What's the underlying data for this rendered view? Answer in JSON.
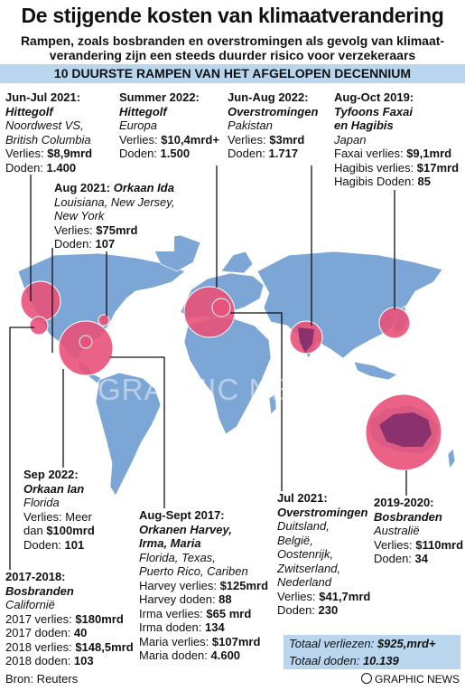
{
  "title": "De stijgende kosten van klimaatverandering",
  "subtitle": "Rampen, zoals bosbranden en overstromingen als gevolg van klimaat-verandering zijn een steeds duurder risico voor verzekeraars",
  "banner": "10 DUURSTE RAMPEN VAN HET AFGELOPEN DECENNIUM",
  "colors": {
    "ocean": "#ffffff",
    "land": "#7ba6d6",
    "highlight": "#e8527a",
    "banner": "#b9d6ee"
  },
  "watermark": "GRAPHIC NEWS",
  "events": {
    "heat2021": {
      "date": "Jun-Jul 2021:",
      "event": "Hittegolf",
      "location1": "Noordwest VS,",
      "location2": "British Columbia",
      "loss_label": "Verlies: ",
      "loss": "$8,9mrd",
      "deaths_label": "Doden: ",
      "deaths": "1.400"
    },
    "heat2022": {
      "date": "Summer 2022:",
      "event": "Hittegolf",
      "location": "Europa",
      "loss_label": "Verlies: ",
      "loss": "$10,4mrd+",
      "deaths_label": "Doden: ",
      "deaths": "1.500"
    },
    "pakistan": {
      "date": "Jun-Aug 2022:",
      "event": "Overstromingen",
      "location": "Pakistan",
      "loss_label": "Verlies: ",
      "loss": "$3mrd",
      "deaths_label": "Doden: ",
      "deaths": "1.717"
    },
    "japan": {
      "date": "Aug-Oct 2019:",
      "event1": "Tyfoons Faxai",
      "event2": "en Hagibis",
      "location": "Japan",
      "loss1_label": "Faxai verlies: ",
      "loss1": "$9,1mrd",
      "loss2_label": "Hagibis verlies: ",
      "loss2": "$17mrd",
      "deaths_label": "Hagibis Doden: ",
      "deaths": "85"
    },
    "ida": {
      "date": "Aug 2021: ",
      "event": "Orkaan Ida",
      "location1": "Louisiana, New Jersey,",
      "location2": "New York",
      "loss_label": "Verlies: ",
      "loss": "$75mrd",
      "deaths_label": "Doden: ",
      "deaths": "107"
    },
    "ian": {
      "date": "Sep 2022:",
      "event": "Orkaan Ian",
      "location": "Florida",
      "loss_label1": "Verlies: Meer",
      "loss_label2": "dan ",
      "loss": "$100mrd",
      "deaths_label": "Doden: ",
      "deaths": "101"
    },
    "harvey": {
      "date": "Aug-Sept 2017:",
      "event1": "Orkanen Harvey,",
      "event2": "Irma, Maria",
      "location1": "Florida, Texas,",
      "location2": "Puerto Rico, Cariben",
      "harvey_loss_label": "Harvey verlies: ",
      "harvey_loss": "$125mrd",
      "harvey_deaths_label": "Harvey doden: ",
      "harvey_deaths": "88",
      "irma_loss_label": "Irma verlies: ",
      "irma_loss": "$65 mrd",
      "irma_deaths_label": "Irma doden: ",
      "irma_deaths": "134",
      "maria_loss_label": "Maria verlies: ",
      "maria_loss": "$107mrd",
      "maria_deaths_label": "Maria doden: ",
      "maria_deaths": "4.600"
    },
    "europe_floods": {
      "date": "Jul 2021:",
      "event": "Overstromingen",
      "locations": [
        "Duitsland,",
        "België,",
        "Oostenrijk,",
        "Zwitserland,",
        "Nederland"
      ],
      "loss_label": "Verlies: ",
      "loss": "$41,7mrd",
      "deaths_label": "Doden: ",
      "deaths": "230"
    },
    "california": {
      "date": "2017-2018:",
      "event": "Bosbranden",
      "location": "Californië",
      "loss2017_label": "2017 verlies: ",
      "loss2017": "$180mrd",
      "deaths2017_label": "2017 doden: ",
      "deaths2017": "40",
      "loss2018_label": "2018 verlies: ",
      "loss2018": "$148,5mrd",
      "deaths2018_label": "2018 doden: ",
      "deaths2018": "103"
    },
    "australia": {
      "date": "2019-2020:",
      "event": "Bosbranden",
      "location": "Australië",
      "loss_label": "Verlies: ",
      "loss": "$110mrd",
      "deaths_label": "Doden: ",
      "deaths": "34"
    }
  },
  "totals": {
    "loss_label": "Totaal verliezen: ",
    "loss": "$925,mrd+",
    "deaths_label": "Totaal doden: ",
    "deaths": "10.139"
  },
  "source": "Bron: Reuters",
  "credit": "GRAPHIC NEWS"
}
